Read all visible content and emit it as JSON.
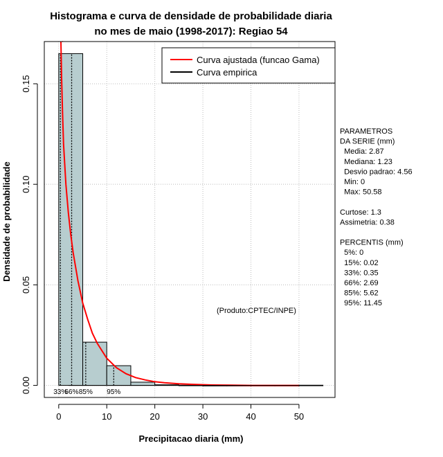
{
  "chart_data": {
    "type": "bar",
    "title_lines": [
      "Histograma e curva de densidade de probabilidade diaria",
      "no mes de maio (1998-2017): Regiao 54"
    ],
    "xlabel": "Precipitacao diaria (mm)",
    "ylabel": "Densidade de probabilidade",
    "xlim": [
      -3,
      57.5
    ],
    "ylim": [
      -0.006,
      0.171
    ],
    "x_ticks": [
      0,
      10,
      20,
      30,
      40,
      50
    ],
    "y_ticks": [
      0.0,
      0.05,
      0.1,
      0.15
    ],
    "y_tick_labels": [
      "0.00",
      "0.05",
      "0.10",
      "0.15"
    ],
    "grid": true,
    "histogram": {
      "bin_edges": [
        0,
        5,
        10,
        15,
        20,
        25,
        30,
        35,
        40,
        45,
        50,
        55
      ],
      "density": [
        0.165,
        0.0215,
        0.0098,
        0.0016,
        0.0003,
        0.0001,
        0.0,
        0.0,
        0.0,
        0.0,
        0.0001
      ],
      "fill_color": "#b7cdcf"
    },
    "series": [
      {
        "name": "Curva ajustada (funcao Gama)",
        "color": "#ff0000",
        "x": [
          0.45,
          0.6,
          0.8,
          1.0,
          1.5,
          2.0,
          2.5,
          3.0,
          4.0,
          5.0,
          6.0,
          7.0,
          8.0,
          10.0,
          12.0,
          14.0,
          16.0,
          18.0,
          20.0,
          22.0,
          25.0,
          28.0,
          32.0,
          36.0,
          40.0,
          45.0,
          50.0
        ],
        "y": [
          0.171,
          0.153,
          0.135,
          0.12,
          0.1,
          0.086,
          0.075,
          0.066,
          0.052,
          0.041,
          0.033,
          0.026,
          0.021,
          0.0135,
          0.0088,
          0.0058,
          0.0039,
          0.0027,
          0.0018,
          0.0013,
          0.0008,
          0.0005,
          0.0002,
          0.0001,
          0.0,
          0.0,
          0.0
        ]
      },
      {
        "name": "Curva empirica",
        "color": "#000000",
        "x": [
          0.0,
          0.2,
          0.5,
          0.8
        ],
        "y": [
          0.171,
          0.171,
          0.171,
          0.171
        ]
      }
    ],
    "percentile_lines": [
      {
        "label": "33%",
        "value": 0.35
      },
      {
        "label": "66%",
        "value": 2.69
      },
      {
        "label": "85%",
        "value": 5.62
      },
      {
        "label": "95%",
        "value": 11.45
      }
    ],
    "legend_position": "top-right",
    "annotation": "(Produto:CPTEC/INPE)",
    "percentile_strip_labels": [
      "33%",
      "66%",
      "85%",
      "95%"
    ]
  },
  "stats_panel": {
    "lines": [
      "PARAMETROS",
      "DA SERIE (mm)",
      "  Media: 2.87",
      "  Mediana: 1.23",
      "  Desvio padrao: 4.56",
      "  Min: 0",
      "  Max: 50.58",
      "",
      "Curtose: 1.3",
      "Assimetria: 0.38",
      "",
      "PERCENTIS (mm)",
      "  5%: 0",
      "  15%: 0.02",
      "  33%: 0.35",
      "  66%: 2.69",
      "  85%: 5.62",
      "  95%: 11.45"
    ]
  },
  "colors": {
    "grid": "#bbbbbb",
    "axis": "#000000",
    "gamma_curve": "#ff0000",
    "bar_fill": "#b7cdcf"
  }
}
